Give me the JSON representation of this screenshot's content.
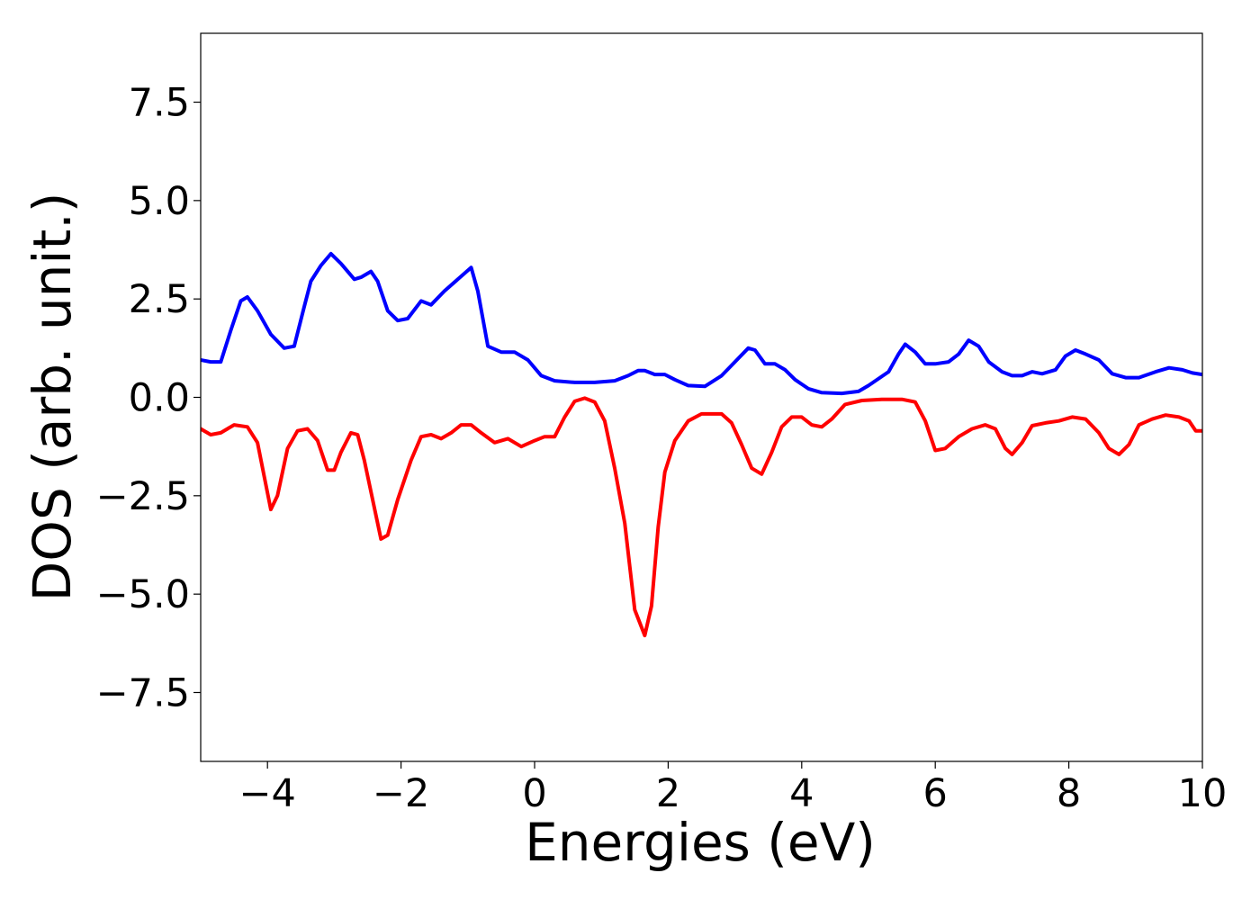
{
  "chart_data": {
    "type": "line",
    "title": "",
    "xlabel": "Energies (eV)",
    "ylabel": "DOS (arb. unit.)",
    "xlim": [
      -5,
      10
    ],
    "ylim": [
      -9.25,
      9.25
    ],
    "grid": false,
    "xticks": [
      -4,
      -2,
      0,
      2,
      4,
      6,
      8,
      10
    ],
    "xtick_labels": [
      "−4",
      "−2",
      "0",
      "2",
      "4",
      "6",
      "8",
      "10"
    ],
    "yticks": [
      7.5,
      5.0,
      2.5,
      0.0,
      -2.5,
      -5.0,
      -7.5
    ],
    "ytick_labels": [
      "7.5",
      "5.0",
      "2.5",
      "0.0",
      "−2.5",
      "−5.0",
      "−7.5"
    ],
    "series": [
      {
        "color": "#0000ff",
        "points": [
          [
            -5.0,
            0.95
          ],
          [
            -4.85,
            0.9
          ],
          [
            -4.7,
            0.9
          ],
          [
            -4.55,
            1.7
          ],
          [
            -4.4,
            2.45
          ],
          [
            -4.3,
            2.55
          ],
          [
            -4.15,
            2.2
          ],
          [
            -3.95,
            1.6
          ],
          [
            -3.75,
            1.25
          ],
          [
            -3.6,
            1.3
          ],
          [
            -3.45,
            2.3
          ],
          [
            -3.35,
            2.95
          ],
          [
            -3.2,
            3.35
          ],
          [
            -3.05,
            3.65
          ],
          [
            -2.9,
            3.4
          ],
          [
            -2.7,
            3.0
          ],
          [
            -2.6,
            3.05
          ],
          [
            -2.45,
            3.2
          ],
          [
            -2.35,
            2.95
          ],
          [
            -2.2,
            2.2
          ],
          [
            -2.05,
            1.95
          ],
          [
            -1.9,
            2.0
          ],
          [
            -1.7,
            2.45
          ],
          [
            -1.55,
            2.35
          ],
          [
            -1.35,
            2.7
          ],
          [
            -1.15,
            3.0
          ],
          [
            -0.95,
            3.3
          ],
          [
            -0.85,
            2.7
          ],
          [
            -0.7,
            1.3
          ],
          [
            -0.5,
            1.15
          ],
          [
            -0.3,
            1.15
          ],
          [
            -0.1,
            0.95
          ],
          [
            0.1,
            0.55
          ],
          [
            0.3,
            0.42
          ],
          [
            0.6,
            0.38
          ],
          [
            0.9,
            0.38
          ],
          [
            1.2,
            0.42
          ],
          [
            1.4,
            0.55
          ],
          [
            1.55,
            0.68
          ],
          [
            1.65,
            0.68
          ],
          [
            1.8,
            0.58
          ],
          [
            1.95,
            0.58
          ],
          [
            2.1,
            0.45
          ],
          [
            2.3,
            0.3
          ],
          [
            2.55,
            0.28
          ],
          [
            2.8,
            0.55
          ],
          [
            3.0,
            0.9
          ],
          [
            3.2,
            1.25
          ],
          [
            3.3,
            1.2
          ],
          [
            3.45,
            0.85
          ],
          [
            3.6,
            0.85
          ],
          [
            3.75,
            0.7
          ],
          [
            3.9,
            0.45
          ],
          [
            4.1,
            0.22
          ],
          [
            4.3,
            0.12
          ],
          [
            4.6,
            0.1
          ],
          [
            4.85,
            0.15
          ],
          [
            5.0,
            0.3
          ],
          [
            5.3,
            0.65
          ],
          [
            5.45,
            1.1
          ],
          [
            5.55,
            1.35
          ],
          [
            5.7,
            1.15
          ],
          [
            5.85,
            0.85
          ],
          [
            6.0,
            0.85
          ],
          [
            6.2,
            0.9
          ],
          [
            6.35,
            1.1
          ],
          [
            6.5,
            1.45
          ],
          [
            6.65,
            1.3
          ],
          [
            6.8,
            0.9
          ],
          [
            7.0,
            0.65
          ],
          [
            7.15,
            0.55
          ],
          [
            7.3,
            0.55
          ],
          [
            7.45,
            0.65
          ],
          [
            7.6,
            0.6
          ],
          [
            7.8,
            0.7
          ],
          [
            7.95,
            1.05
          ],
          [
            8.1,
            1.2
          ],
          [
            8.25,
            1.1
          ],
          [
            8.45,
            0.95
          ],
          [
            8.65,
            0.6
          ],
          [
            8.85,
            0.5
          ],
          [
            9.05,
            0.5
          ],
          [
            9.3,
            0.65
          ],
          [
            9.5,
            0.75
          ],
          [
            9.7,
            0.7
          ],
          [
            9.85,
            0.62
          ],
          [
            10.0,
            0.58
          ]
        ]
      },
      {
        "color": "#ff0000",
        "points": [
          [
            -5.0,
            -0.8
          ],
          [
            -4.85,
            -0.95
          ],
          [
            -4.7,
            -0.9
          ],
          [
            -4.5,
            -0.7
          ],
          [
            -4.3,
            -0.75
          ],
          [
            -4.15,
            -1.15
          ],
          [
            -4.05,
            -2.0
          ],
          [
            -3.95,
            -2.85
          ],
          [
            -3.85,
            -2.5
          ],
          [
            -3.7,
            -1.3
          ],
          [
            -3.55,
            -0.85
          ],
          [
            -3.4,
            -0.8
          ],
          [
            -3.25,
            -1.1
          ],
          [
            -3.1,
            -1.85
          ],
          [
            -3.0,
            -1.85
          ],
          [
            -2.9,
            -1.4
          ],
          [
            -2.75,
            -0.9
          ],
          [
            -2.65,
            -0.95
          ],
          [
            -2.55,
            -1.6
          ],
          [
            -2.4,
            -2.8
          ],
          [
            -2.3,
            -3.6
          ],
          [
            -2.2,
            -3.5
          ],
          [
            -2.05,
            -2.6
          ],
          [
            -1.85,
            -1.6
          ],
          [
            -1.7,
            -1.0
          ],
          [
            -1.55,
            -0.95
          ],
          [
            -1.4,
            -1.05
          ],
          [
            -1.25,
            -0.9
          ],
          [
            -1.1,
            -0.7
          ],
          [
            -0.95,
            -0.7
          ],
          [
            -0.8,
            -0.9
          ],
          [
            -0.6,
            -1.15
          ],
          [
            -0.4,
            -1.05
          ],
          [
            -0.2,
            -1.25
          ],
          [
            0.0,
            -1.1
          ],
          [
            0.15,
            -1.0
          ],
          [
            0.3,
            -1.0
          ],
          [
            0.45,
            -0.5
          ],
          [
            0.6,
            -0.1
          ],
          [
            0.75,
            -0.02
          ],
          [
            0.9,
            -0.12
          ],
          [
            1.05,
            -0.6
          ],
          [
            1.2,
            -1.8
          ],
          [
            1.35,
            -3.2
          ],
          [
            1.5,
            -5.4
          ],
          [
            1.65,
            -6.05
          ],
          [
            1.75,
            -5.3
          ],
          [
            1.85,
            -3.3
          ],
          [
            1.95,
            -1.9
          ],
          [
            2.1,
            -1.1
          ],
          [
            2.3,
            -0.6
          ],
          [
            2.5,
            -0.42
          ],
          [
            2.8,
            -0.42
          ],
          [
            2.95,
            -0.65
          ],
          [
            3.1,
            -1.2
          ],
          [
            3.25,
            -1.8
          ],
          [
            3.4,
            -1.95
          ],
          [
            3.55,
            -1.4
          ],
          [
            3.7,
            -0.75
          ],
          [
            3.85,
            -0.5
          ],
          [
            4.0,
            -0.5
          ],
          [
            4.15,
            -0.7
          ],
          [
            4.3,
            -0.75
          ],
          [
            4.45,
            -0.55
          ],
          [
            4.65,
            -0.18
          ],
          [
            4.9,
            -0.08
          ],
          [
            5.2,
            -0.05
          ],
          [
            5.5,
            -0.05
          ],
          [
            5.7,
            -0.12
          ],
          [
            5.85,
            -0.6
          ],
          [
            6.0,
            -1.35
          ],
          [
            6.15,
            -1.3
          ],
          [
            6.35,
            -1.0
          ],
          [
            6.55,
            -0.8
          ],
          [
            6.75,
            -0.7
          ],
          [
            6.9,
            -0.8
          ],
          [
            7.05,
            -1.3
          ],
          [
            7.15,
            -1.45
          ],
          [
            7.3,
            -1.15
          ],
          [
            7.45,
            -0.72
          ],
          [
            7.65,
            -0.65
          ],
          [
            7.85,
            -0.6
          ],
          [
            8.05,
            -0.5
          ],
          [
            8.25,
            -0.55
          ],
          [
            8.45,
            -0.9
          ],
          [
            8.6,
            -1.3
          ],
          [
            8.75,
            -1.45
          ],
          [
            8.9,
            -1.2
          ],
          [
            9.05,
            -0.7
          ],
          [
            9.25,
            -0.55
          ],
          [
            9.45,
            -0.45
          ],
          [
            9.65,
            -0.5
          ],
          [
            9.8,
            -0.6
          ],
          [
            9.9,
            -0.85
          ],
          [
            10.0,
            -0.85
          ]
        ]
      }
    ]
  }
}
